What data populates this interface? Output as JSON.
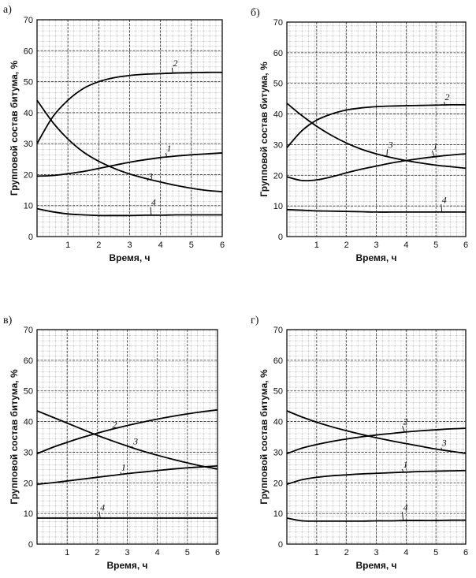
{
  "chart_data": [
    {
      "panel_label": "а)",
      "type": "line",
      "xlabel": "Время, ч",
      "ylabel": "Групповой состав битума, %",
      "xlim": [
        0,
        6
      ],
      "ylim": [
        0,
        70
      ],
      "x_ticks": [
        "1",
        "2",
        "3",
        "4",
        "5",
        "6"
      ],
      "y_ticks": [
        "0",
        "10",
        "20",
        "30",
        "40",
        "50",
        "60",
        "70"
      ],
      "grid": true,
      "x": [
        0,
        0.5,
        1,
        1.5,
        2,
        2.5,
        3,
        3.5,
        4,
        4.5,
        5,
        5.5,
        6
      ],
      "series": [
        {
          "name": "1",
          "values": [
            19.5,
            19.7,
            20.3,
            21.0,
            22.0,
            23.0,
            24.0,
            24.8,
            25.5,
            26.0,
            26.4,
            26.7,
            27.0
          ],
          "label_at": [
            4.2,
            27.5
          ]
        },
        {
          "name": "2",
          "values": [
            30.0,
            38.5,
            44.0,
            47.8,
            50.0,
            51.3,
            52.0,
            52.4,
            52.6,
            52.8,
            52.9,
            53.0,
            53.0
          ],
          "label_at": [
            4.4,
            55.0
          ]
        },
        {
          "name": "3",
          "values": [
            44.0,
            37.0,
            31.5,
            27.3,
            24.3,
            22.0,
            20.2,
            18.8,
            17.6,
            16.5,
            15.6,
            14.9,
            14.5
          ],
          "label_at": [
            3.6,
            18.5
          ]
        },
        {
          "name": "4",
          "values": [
            9.0,
            8.0,
            7.3,
            7.0,
            6.8,
            6.8,
            6.8,
            6.9,
            6.9,
            7.0,
            7.0,
            7.0,
            7.0
          ],
          "label_at": [
            3.7,
            10.0
          ]
        }
      ]
    },
    {
      "panel_label": "б)",
      "type": "line",
      "xlabel": "Время, ч",
      "ylabel": "Групповой состав битума, %",
      "xlim": [
        0,
        6
      ],
      "ylim": [
        0,
        70
      ],
      "x_ticks": [
        "1",
        "2",
        "3",
        "4",
        "5",
        "6"
      ],
      "y_ticks": [
        "0",
        "10",
        "20",
        "30",
        "40",
        "50",
        "60",
        "70"
      ],
      "grid": true,
      "x": [
        0,
        0.5,
        1,
        1.5,
        2,
        2.5,
        3,
        3.5,
        4,
        4.5,
        5,
        5.5,
        6
      ],
      "series": [
        {
          "name": "1",
          "values": [
            19.5,
            18.3,
            18.5,
            19.5,
            20.8,
            22.0,
            23.0,
            24.0,
            24.8,
            25.5,
            26.1,
            26.6,
            27.0
          ],
          "label_at": [
            4.9,
            28.5
          ]
        },
        {
          "name": "2",
          "values": [
            29.0,
            34.5,
            38.0,
            40.0,
            41.3,
            42.0,
            42.4,
            42.6,
            42.7,
            42.8,
            42.9,
            43.0,
            43.0
          ],
          "label_at": [
            5.3,
            44.5
          ]
        },
        {
          "name": "3",
          "values": [
            43.5,
            39.5,
            36.0,
            33.0,
            30.5,
            28.5,
            27.0,
            25.8,
            24.8,
            24.0,
            23.3,
            22.8,
            22.3
          ],
          "label_at": [
            3.4,
            29.0
          ]
        },
        {
          "name": "4",
          "values": [
            8.8,
            8.6,
            8.4,
            8.3,
            8.2,
            8.1,
            8.0,
            8.0,
            8.0,
            8.0,
            8.0,
            8.0,
            8.0
          ],
          "label_at": [
            5.2,
            11.0
          ]
        }
      ]
    },
    {
      "panel_label": "в)",
      "type": "line",
      "xlabel": "Время, ч",
      "ylabel": "Групповой состав битума, %",
      "xlim": [
        0,
        6
      ],
      "ylim": [
        0,
        70
      ],
      "x_ticks": [
        "1",
        "2",
        "3",
        "4",
        "5",
        "6"
      ],
      "y_ticks": [
        "0",
        "10",
        "20",
        "30",
        "40",
        "50",
        "60",
        "70"
      ],
      "grid": true,
      "x": [
        0,
        0.5,
        1,
        1.5,
        2,
        2.5,
        3,
        3.5,
        4,
        4.5,
        5,
        5.5,
        6
      ],
      "series": [
        {
          "name": "1",
          "values": [
            19.5,
            20.0,
            20.6,
            21.2,
            21.8,
            22.4,
            23.0,
            23.5,
            24.0,
            24.5,
            24.9,
            25.2,
            25.5
          ],
          "label_at": [
            2.8,
            24.0
          ]
        },
        {
          "name": "2",
          "values": [
            29.5,
            31.5,
            33.2,
            34.8,
            36.2,
            37.5,
            38.7,
            39.8,
            40.8,
            41.7,
            42.5,
            43.2,
            43.8
          ],
          "label_at": [
            2.5,
            38.0
          ]
        },
        {
          "name": "3",
          "values": [
            43.5,
            41.5,
            39.5,
            37.5,
            35.5,
            33.7,
            32.0,
            30.4,
            29.0,
            27.7,
            26.5,
            25.4,
            24.5
          ],
          "label_at": [
            3.2,
            32.5
          ]
        },
        {
          "name": "4",
          "values": [
            8.5,
            8.5,
            8.5,
            8.5,
            8.5,
            8.5,
            8.5,
            8.5,
            8.5,
            8.5,
            8.5,
            8.5,
            8.5
          ],
          "label_at": [
            2.1,
            11.0
          ]
        }
      ]
    },
    {
      "panel_label": "г)",
      "type": "line",
      "xlabel": "Время, ч",
      "ylabel": "Групповой состав битума, %",
      "xlim": [
        0,
        6
      ],
      "ylim": [
        0,
        70
      ],
      "x_ticks": [
        "1",
        "2",
        "3",
        "4",
        "5",
        "6"
      ],
      "y_ticks": [
        "0",
        "10",
        "20",
        "30",
        "40",
        "50",
        "60",
        "70"
      ],
      "grid": true,
      "x": [
        0,
        0.5,
        1,
        1.5,
        2,
        2.5,
        3,
        3.5,
        4,
        4.5,
        5,
        5.5,
        6
      ],
      "series": [
        {
          "name": "1",
          "values": [
            19.5,
            21.0,
            21.8,
            22.3,
            22.6,
            22.9,
            23.1,
            23.3,
            23.5,
            23.7,
            23.8,
            23.9,
            24.0
          ],
          "label_at": [
            3.9,
            25.0
          ]
        },
        {
          "name": "2",
          "values": [
            29.5,
            31.3,
            32.5,
            33.5,
            34.3,
            35.0,
            35.6,
            36.1,
            36.6,
            37.0,
            37.3,
            37.6,
            37.8
          ],
          "label_at": [
            3.9,
            39.0
          ]
        },
        {
          "name": "3",
          "values": [
            43.5,
            41.5,
            39.8,
            38.3,
            37.0,
            35.8,
            34.7,
            33.7,
            32.8,
            31.9,
            31.0,
            30.3,
            29.6
          ],
          "label_at": [
            5.2,
            32.0
          ]
        },
        {
          "name": "4",
          "values": [
            8.5,
            7.6,
            7.5,
            7.5,
            7.5,
            7.5,
            7.6,
            7.6,
            7.7,
            7.7,
            7.7,
            7.8,
            7.8
          ],
          "label_at": [
            3.9,
            11.0
          ]
        }
      ]
    }
  ]
}
